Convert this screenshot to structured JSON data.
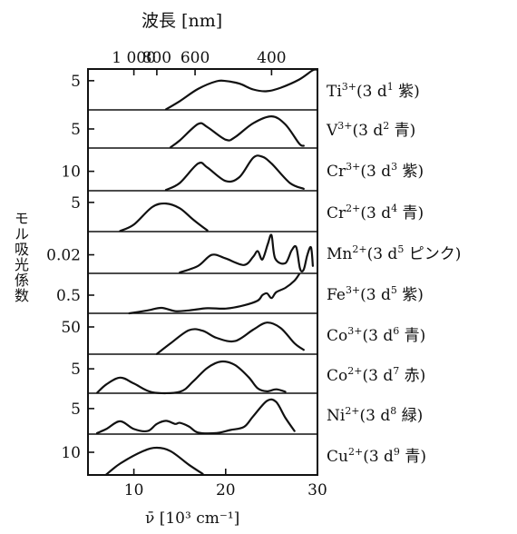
{
  "chart_data": {
    "type": "line",
    "top_axis": {
      "title": "波長 [nm]",
      "ticks": [
        {
          "label": "1 000",
          "wavelength_nm": 1000
        },
        {
          "label": "800",
          "wavelength_nm": 800
        },
        {
          "label": "600",
          "wavelength_nm": 600
        },
        {
          "label": "400",
          "wavelength_nm": 400
        }
      ]
    },
    "xlabel": "ν̄ [10³ cm⁻¹]",
    "xlim": [
      5,
      30
    ],
    "xticks": [
      10,
      20,
      30
    ],
    "ylabel": "モル吸光係数",
    "grid": false,
    "series": [
      {
        "ion": "Ti",
        "charge": "3+",
        "config": "(3 d",
        "exp": "1",
        "color_word": "紫)",
        "tick_label": "5",
        "tick_value": 5,
        "ylim": [
          0,
          7
        ],
        "points": [
          [
            13.5,
            0.1
          ],
          [
            15,
            1.5
          ],
          [
            17,
            3.6
          ],
          [
            19,
            4.9
          ],
          [
            20,
            4.95
          ],
          [
            21.5,
            4.5
          ],
          [
            23,
            3.5
          ],
          [
            24.5,
            3.2
          ],
          [
            26,
            3.8
          ],
          [
            28,
            5.2
          ],
          [
            29.5,
            6.8
          ],
          [
            30,
            7.5
          ]
        ]
      },
      {
        "ion": "V",
        "charge": "3+",
        "config": "(3 d",
        "exp": "2",
        "color_word": "青)",
        "tick_label": "5",
        "tick_value": 5,
        "ylim": [
          0,
          10
        ],
        "points": [
          [
            14,
            0.2
          ],
          [
            15,
            2
          ],
          [
            17,
            6.3
          ],
          [
            18,
            5.5
          ],
          [
            20,
            2.2
          ],
          [
            21,
            2.8
          ],
          [
            23,
            6.5
          ],
          [
            25,
            8.3
          ],
          [
            26.5,
            6.2
          ],
          [
            28,
            1.2
          ],
          [
            28.5,
            0.6
          ]
        ]
      },
      {
        "ion": "Cr",
        "charge": "3+",
        "config": "(3 d",
        "exp": "3",
        "color_word": "紫)",
        "tick_label": "10",
        "tick_value": 10,
        "ylim": [
          0,
          22
        ],
        "points": [
          [
            13.5,
            0.4
          ],
          [
            15,
            4
          ],
          [
            17,
            14
          ],
          [
            18,
            12
          ],
          [
            20,
            5
          ],
          [
            21.5,
            7
          ],
          [
            23,
            17
          ],
          [
            24,
            17.5
          ],
          [
            25,
            14
          ],
          [
            27,
            4
          ],
          [
            28.5,
            1
          ]
        ]
      },
      {
        "ion": "Cr",
        "charge": "2+",
        "config": "(3 d",
        "exp": "4",
        "color_word": "青)",
        "tick_label": "5",
        "tick_value": 5,
        "ylim": [
          0,
          7
        ],
        "points": [
          [
            8.5,
            0.1
          ],
          [
            10,
            1.2
          ],
          [
            12,
            4.2
          ],
          [
            13.5,
            4.8
          ],
          [
            15,
            4
          ],
          [
            16.5,
            2
          ],
          [
            18,
            0.2
          ]
        ]
      },
      {
        "ion": "Mn",
        "charge": "2+",
        "config": "(3 d",
        "exp": "5",
        "color_word": "ピンク)",
        "tick_label": "0.02",
        "tick_value": 0.02,
        "ylim": [
          0,
          0.045
        ],
        "points": [
          [
            15,
            0.001
          ],
          [
            17,
            0.008
          ],
          [
            18.5,
            0.02
          ],
          [
            20,
            0.016
          ],
          [
            22,
            0.009
          ],
          [
            23,
            0.018
          ],
          [
            23.5,
            0.024
          ],
          [
            24,
            0.015
          ],
          [
            24.6,
            0.032
          ],
          [
            25,
            0.041
          ],
          [
            25.4,
            0.016
          ],
          [
            26.5,
            0.011
          ],
          [
            27.2,
            0.025
          ],
          [
            27.7,
            0.028
          ],
          [
            28.1,
            0.005
          ],
          [
            28.5,
            0.004
          ],
          [
            28.9,
            0.02
          ],
          [
            29.3,
            0.028
          ],
          [
            29.5,
            0.008
          ]
        ]
      },
      {
        "ion": "Fe",
        "charge": "3+",
        "config": "(3 d",
        "exp": "5",
        "color_word": "紫)",
        "tick_label": "0.5",
        "tick_value": 0.5,
        "ylim": [
          0,
          1.1
        ],
        "points": [
          [
            9.5,
            0
          ],
          [
            11.5,
            0.08
          ],
          [
            13,
            0.15
          ],
          [
            14.5,
            0.06
          ],
          [
            16,
            0.08
          ],
          [
            18,
            0.14
          ],
          [
            20,
            0.13
          ],
          [
            22,
            0.22
          ],
          [
            23.5,
            0.35
          ],
          [
            24,
            0.5
          ],
          [
            24.5,
            0.55
          ],
          [
            25,
            0.42
          ],
          [
            25.5,
            0.58
          ],
          [
            26.5,
            0.7
          ],
          [
            27.5,
            0.9
          ],
          [
            28,
            1.1
          ]
        ]
      },
      {
        "ion": "Co",
        "charge": "3+",
        "config": "(3 d",
        "exp": "6",
        "color_word": "青)",
        "tick_label": "50",
        "tick_value": 50,
        "ylim": [
          0,
          75
        ],
        "points": [
          [
            12.5,
            0.5
          ],
          [
            14,
            20
          ],
          [
            16,
            44
          ],
          [
            17.5,
            43
          ],
          [
            19,
            30
          ],
          [
            21,
            24
          ],
          [
            23,
            45
          ],
          [
            24.5,
            58
          ],
          [
            26,
            48
          ],
          [
            27.5,
            20
          ],
          [
            28.5,
            8
          ]
        ]
      },
      {
        "ion": "Co",
        "charge": "2+",
        "config": "(3 d",
        "exp": "7",
        "color_word": "赤)",
        "tick_label": "5",
        "tick_value": 5,
        "ylim": [
          0,
          8
        ],
        "points": [
          [
            6,
            0.1
          ],
          [
            7,
            1.8
          ],
          [
            8.5,
            3.2
          ],
          [
            10,
            2
          ],
          [
            12,
            0.2
          ],
          [
            15,
            0.3
          ],
          [
            16.5,
            2.5
          ],
          [
            18,
            5.2
          ],
          [
            19.5,
            6.5
          ],
          [
            21,
            5.8
          ],
          [
            22.5,
            3.3
          ],
          [
            23.5,
            1
          ],
          [
            24.5,
            0.4
          ],
          [
            25.5,
            0.8
          ],
          [
            26.5,
            0.3
          ]
        ]
      },
      {
        "ion": "Ni",
        "charge": "2+",
        "config": "(3 d",
        "exp": "8",
        "color_word": "緑)",
        "tick_label": "5",
        "tick_value": 5,
        "ylim": [
          0,
          8
        ],
        "points": [
          [
            6,
            0.2
          ],
          [
            7,
            1
          ],
          [
            8.5,
            2.5
          ],
          [
            10,
            1
          ],
          [
            11.5,
            0.6
          ],
          [
            12.5,
            2
          ],
          [
            13.5,
            2.6
          ],
          [
            14.5,
            2
          ],
          [
            15,
            2.2
          ],
          [
            16,
            1.5
          ],
          [
            17,
            0.3
          ],
          [
            19,
            0.2
          ],
          [
            20.5,
            0.8
          ],
          [
            22,
            1.4
          ],
          [
            23,
            3.5
          ],
          [
            24.5,
            6.5
          ],
          [
            25.5,
            6.3
          ],
          [
            26.5,
            3.2
          ],
          [
            27.5,
            0.6
          ]
        ]
      },
      {
        "ion": "Cu",
        "charge": "2+",
        "config": "(3 d",
        "exp": "9",
        "color_word": "青)",
        "tick_label": "10",
        "tick_value": 10,
        "ylim": [
          0,
          18
        ],
        "points": [
          [
            7,
            0.2
          ],
          [
            8.5,
            5
          ],
          [
            11,
            10.5
          ],
          [
            12.5,
            12
          ],
          [
            14,
            10.5
          ],
          [
            16,
            4.5
          ],
          [
            17.5,
            0.5
          ]
        ]
      }
    ]
  }
}
